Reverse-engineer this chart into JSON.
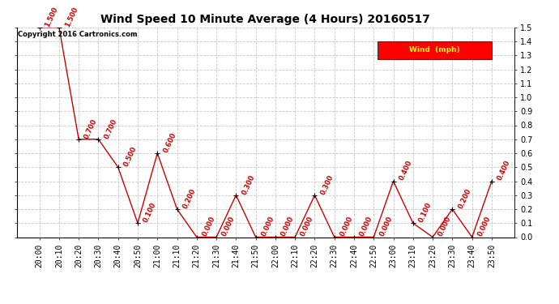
{
  "title": "Wind Speed 10 Minute Average (4 Hours) 20160517",
  "copyright_text": "Copyright 2016 Cartronics.com",
  "legend_label": "Wind  (mph)",
  "legend_bg": "#ff0000",
  "legend_text_color": "#ffff00",
  "times": [
    "20:00",
    "20:10",
    "20:20",
    "20:30",
    "20:40",
    "20:50",
    "21:00",
    "21:10",
    "21:20",
    "21:30",
    "21:40",
    "21:50",
    "22:00",
    "22:10",
    "22:20",
    "22:30",
    "22:40",
    "22:50",
    "23:00",
    "23:10",
    "23:20",
    "23:30",
    "23:40",
    "23:50"
  ],
  "values": [
    1.5,
    1.5,
    0.7,
    0.7,
    0.5,
    0.1,
    0.6,
    0.2,
    0.0,
    0.0,
    0.3,
    0.0,
    0.0,
    0.0,
    0.3,
    0.0,
    0.0,
    0.0,
    0.4,
    0.1,
    0.0,
    0.2,
    0.0,
    0.4
  ],
  "line_color": "#cc0000",
  "marker_color": "#000000",
  "annotation_color": "#cc0000",
  "bg_color": "#ffffff",
  "plot_bg_color": "#ffffff",
  "grid_color": "#c8c8c8",
  "ylim_min": 0.0,
  "ylim_max": 1.5,
  "yticks": [
    0.0,
    0.1,
    0.2,
    0.3,
    0.4,
    0.5,
    0.6,
    0.7,
    0.8,
    0.9,
    1.0,
    1.1,
    1.2,
    1.3,
    1.4,
    1.5
  ],
  "title_fontsize": 10,
  "annotation_fontsize": 6,
  "tick_fontsize": 7,
  "copyright_fontsize": 6
}
